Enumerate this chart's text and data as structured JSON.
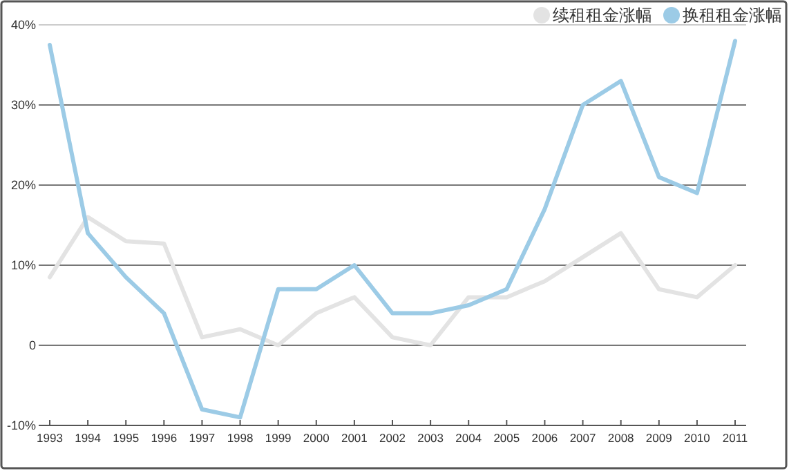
{
  "chart_data": {
    "type": "line",
    "categories": [
      "1993",
      "1994",
      "1995",
      "1996",
      "1997",
      "1998",
      "1999",
      "2000",
      "2001",
      "2002",
      "2003",
      "2004",
      "2005",
      "2006",
      "2007",
      "2008",
      "2009",
      "2010",
      "2011"
    ],
    "series": [
      {
        "name": "续租租金涨幅",
        "color": "#e3e3e3",
        "values": [
          8.5,
          16,
          13,
          12.7,
          1,
          2,
          0,
          4,
          6,
          1,
          0,
          6,
          6,
          8,
          11,
          14,
          7,
          6,
          10
        ]
      },
      {
        "name": "换租租金涨幅",
        "color": "#9ccbe6",
        "values": [
          37.5,
          14,
          8.5,
          4,
          -8,
          -9,
          7,
          7,
          10,
          4,
          4,
          5,
          7,
          17,
          30,
          33,
          21,
          19,
          38
        ]
      }
    ],
    "ylim": [
      -10,
      40
    ],
    "yticks": [
      {
        "value": -10,
        "label": "-10%"
      },
      0,
      {
        "value": 10,
        "label": "10%"
      },
      {
        "value": 20,
        "label": "20%"
      },
      {
        "value": 30,
        "label": "30%"
      },
      {
        "value": 40,
        "label": "40%"
      }
    ],
    "grid": "y",
    "legend": "top right",
    "line_style": "solid",
    "marker": "none"
  }
}
